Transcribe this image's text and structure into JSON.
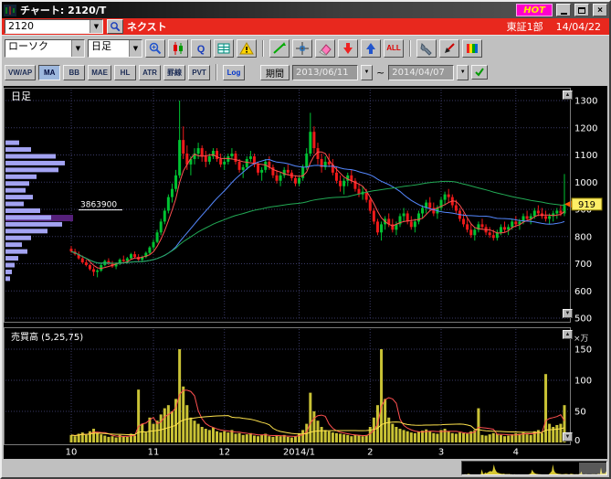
{
  "colors": {
    "symbol_bar": "#e8281e",
    "hot_badge": "#ff00cc",
    "window_bg": "#c0c0c0",
    "chart_bg": "#000000"
  },
  "window": {
    "title": "チャート: 2120/T",
    "hot_label": "HOT"
  },
  "symbol_bar": {
    "code": "2120",
    "name": "ネクスト",
    "market": "東証1部",
    "date": "14/04/22"
  },
  "toolbar": {
    "chart_type": "ローソク",
    "timeframe": "日足",
    "all_label": "ALL",
    "log_label": "Log",
    "icons": [
      "zoom-in",
      "candle-style",
      "quote",
      "grid",
      "alert",
      "draw-line",
      "crosshair",
      "eraser",
      "arrow-down",
      "arrow-up",
      "all",
      "settings",
      "pen",
      "palette"
    ]
  },
  "indicators": {
    "buttons": [
      "VW/AP",
      "MA",
      "BB",
      "MAE",
      "HL",
      "ATR",
      "罫線",
      "PVT"
    ],
    "active_button": "MA",
    "period_label": "期間",
    "date_from": "2013/06/11",
    "date_to": "2014/04/07",
    "tilde": "~"
  },
  "chart": {
    "panel_title": "日足",
    "left_label": "3863900",
    "last_price": "919",
    "volume_title": "売買高 (5,25,75)",
    "volume_unit": "×万",
    "price_ticks": [
      1300,
      1200,
      1100,
      1000,
      900,
      800,
      700,
      600,
      500
    ],
    "volume_ticks": [
      150,
      100,
      50,
      0
    ]
  },
  "chart_data": {
    "type": "candlestick",
    "price_axis": {
      "min": 500,
      "max": 1300,
      "step": 100
    },
    "volume_axis": {
      "min": 0,
      "max": 150,
      "step": 50,
      "unit": "×万"
    },
    "ma_periods": [
      5,
      25,
      75
    ],
    "volume_ma_periods": [
      5,
      25
    ],
    "colors": {
      "up": "#00c332",
      "down": "#ef1a1a",
      "ma5": "#ff5050",
      "ma25": "#5588ff",
      "ma75": "#22aa55",
      "vol_bar": "#c9c235",
      "vol_ma5": "#ff5050",
      "vol_ma25": "#ffe34d",
      "profile": "#a3a3f2",
      "profile_highlight": "#55207a",
      "grid": "#3a3a66",
      "badge_bg": "#ffef66",
      "badge_arrow": "#ff5500"
    },
    "x_labels": [
      {
        "label": "10",
        "i": 0
      },
      {
        "label": "11",
        "i": 22
      },
      {
        "label": "12",
        "i": 41
      },
      {
        "label": "2014/1",
        "i": 61
      },
      {
        "label": "2",
        "i": 80
      },
      {
        "label": "3",
        "i": 99
      },
      {
        "label": "4",
        "i": 119
      }
    ],
    "volume_profile": {
      "highlight_price": 868,
      "highlight_width": 74,
      "bars": [
        [
          1145,
          15
        ],
        [
          1120,
          28
        ],
        [
          1095,
          55
        ],
        [
          1070,
          65
        ],
        [
          1045,
          58
        ],
        [
          1020,
          34
        ],
        [
          995,
          26
        ],
        [
          970,
          22
        ],
        [
          945,
          30
        ],
        [
          920,
          20
        ],
        [
          895,
          38
        ],
        [
          870,
          50
        ],
        [
          845,
          62
        ],
        [
          820,
          46
        ],
        [
          795,
          28
        ],
        [
          770,
          18
        ],
        [
          745,
          24
        ],
        [
          720,
          14
        ],
        [
          695,
          10
        ],
        [
          670,
          7
        ],
        [
          645,
          5
        ]
      ]
    },
    "candles": [
      [
        755,
        765,
        740,
        745,
        12
      ],
      [
        745,
        755,
        730,
        735,
        10
      ],
      [
        735,
        745,
        715,
        720,
        14
      ],
      [
        720,
        730,
        700,
        705,
        16
      ],
      [
        705,
        715,
        690,
        695,
        12
      ],
      [
        695,
        700,
        675,
        680,
        18
      ],
      [
        680,
        690,
        655,
        670,
        22
      ],
      [
        670,
        680,
        650,
        675,
        15
      ],
      [
        675,
        700,
        670,
        695,
        13
      ],
      [
        695,
        715,
        690,
        710,
        11
      ],
      [
        710,
        720,
        695,
        700,
        9
      ],
      [
        700,
        710,
        685,
        690,
        10
      ],
      [
        690,
        705,
        680,
        700,
        8
      ],
      [
        700,
        720,
        695,
        715,
        12
      ],
      [
        715,
        730,
        705,
        710,
        10
      ],
      [
        710,
        725,
        700,
        720,
        9
      ],
      [
        720,
        740,
        715,
        735,
        14
      ],
      [
        735,
        745,
        720,
        725,
        11
      ],
      [
        725,
        735,
        710,
        715,
        85
      ],
      [
        715,
        730,
        705,
        725,
        30
      ],
      [
        725,
        745,
        720,
        740,
        16
      ],
      [
        740,
        765,
        735,
        760,
        40
      ],
      [
        760,
        790,
        750,
        780,
        30
      ],
      [
        780,
        825,
        775,
        815,
        35
      ],
      [
        815,
        865,
        805,
        855,
        45
      ],
      [
        855,
        905,
        845,
        895,
        55
      ],
      [
        895,
        955,
        885,
        945,
        60
      ],
      [
        945,
        995,
        925,
        975,
        50
      ],
      [
        975,
        1045,
        965,
        1025,
        70
      ],
      [
        1025,
        1300,
        1015,
        1155,
        150
      ],
      [
        1155,
        1205,
        1085,
        1105,
        90
      ],
      [
        1105,
        1135,
        1045,
        1065,
        60
      ],
      [
        1065,
        1095,
        1025,
        1085,
        40
      ],
      [
        1085,
        1125,
        1065,
        1105,
        35
      ],
      [
        1105,
        1145,
        1085,
        1125,
        30
      ],
      [
        1125,
        1135,
        1075,
        1095,
        25
      ],
      [
        1095,
        1115,
        1055,
        1075,
        22
      ],
      [
        1075,
        1105,
        1065,
        1095,
        20
      ],
      [
        1095,
        1125,
        1085,
        1115,
        24
      ],
      [
        1115,
        1125,
        1075,
        1085,
        18
      ],
      [
        1085,
        1105,
        1055,
        1065,
        16
      ],
      [
        1065,
        1095,
        1045,
        1075,
        18
      ],
      [
        1075,
        1105,
        1065,
        1095,
        16
      ],
      [
        1095,
        1125,
        1085,
        1105,
        20
      ],
      [
        1105,
        1115,
        1065,
        1075,
        14
      ],
      [
        1075,
        1085,
        1035,
        1045,
        15
      ],
      [
        1045,
        1065,
        1015,
        1055,
        12
      ],
      [
        1055,
        1095,
        1045,
        1085,
        13
      ],
      [
        1085,
        1115,
        1075,
        1095,
        15
      ],
      [
        1095,
        1105,
        1055,
        1065,
        11
      ],
      [
        1065,
        1075,
        1025,
        1035,
        10
      ],
      [
        1035,
        1055,
        1005,
        1045,
        12
      ],
      [
        1045,
        1085,
        1035,
        1075,
        14
      ],
      [
        1075,
        1095,
        1045,
        1055,
        10
      ],
      [
        1055,
        1065,
        1015,
        1025,
        9
      ],
      [
        1025,
        1045,
        995,
        1005,
        11
      ],
      [
        1005,
        1035,
        985,
        1025,
        10
      ],
      [
        1025,
        1055,
        1015,
        1045,
        12
      ],
      [
        1045,
        1065,
        1025,
        1035,
        9
      ],
      [
        1035,
        1045,
        1005,
        1015,
        8
      ],
      [
        1015,
        1025,
        985,
        995,
        10
      ],
      [
        995,
        1025,
        985,
        1015,
        15
      ],
      [
        1015,
        1065,
        1005,
        1055,
        20
      ],
      [
        1055,
        1125,
        1045,
        1105,
        30
      ],
      [
        1105,
        1255,
        1095,
        1185,
        80
      ],
      [
        1185,
        1205,
        1105,
        1125,
        50
      ],
      [
        1125,
        1145,
        1065,
        1085,
        35
      ],
      [
        1085,
        1105,
        1035,
        1055,
        25
      ],
      [
        1055,
        1095,
        1045,
        1075,
        20
      ],
      [
        1075,
        1105,
        1055,
        1065,
        18
      ],
      [
        1065,
        1085,
        1025,
        1035,
        16
      ],
      [
        1035,
        1055,
        995,
        1005,
        15
      ],
      [
        1005,
        1025,
        965,
        985,
        14
      ],
      [
        985,
        1015,
        955,
        1005,
        13
      ],
      [
        1005,
        1035,
        985,
        1025,
        12
      ],
      [
        1025,
        1045,
        995,
        1005,
        10
      ],
      [
        1005,
        1015,
        965,
        975,
        12
      ],
      [
        975,
        995,
        945,
        955,
        11
      ],
      [
        955,
        985,
        935,
        965,
        10
      ],
      [
        965,
        975,
        925,
        935,
        12
      ],
      [
        935,
        945,
        885,
        895,
        25
      ],
      [
        895,
        905,
        845,
        855,
        40
      ],
      [
        855,
        865,
        805,
        815,
        60
      ],
      [
        815,
        855,
        785,
        845,
        150
      ],
      [
        845,
        875,
        825,
        865,
        70
      ],
      [
        865,
        885,
        835,
        845,
        40
      ],
      [
        845,
        865,
        815,
        825,
        30
      ],
      [
        825,
        855,
        805,
        845,
        25
      ],
      [
        845,
        885,
        835,
        875,
        22
      ],
      [
        875,
        905,
        855,
        885,
        20
      ],
      [
        885,
        895,
        845,
        855,
        18
      ],
      [
        855,
        875,
        825,
        835,
        16
      ],
      [
        835,
        865,
        815,
        855,
        15
      ],
      [
        855,
        895,
        845,
        885,
        17
      ],
      [
        885,
        915,
        865,
        905,
        19
      ],
      [
        905,
        935,
        885,
        925,
        21
      ],
      [
        925,
        945,
        895,
        905,
        18
      ],
      [
        905,
        925,
        875,
        885,
        15
      ],
      [
        885,
        915,
        865,
        905,
        14
      ],
      [
        905,
        945,
        895,
        935,
        20
      ],
      [
        935,
        965,
        915,
        955,
        22
      ],
      [
        955,
        975,
        925,
        945,
        18
      ],
      [
        945,
        955,
        905,
        915,
        15
      ],
      [
        915,
        935,
        885,
        895,
        14
      ],
      [
        895,
        905,
        855,
        865,
        16
      ],
      [
        865,
        885,
        835,
        845,
        15
      ],
      [
        845,
        865,
        815,
        825,
        14
      ],
      [
        825,
        845,
        795,
        805,
        18
      ],
      [
        805,
        835,
        785,
        825,
        20
      ],
      [
        825,
        855,
        815,
        845,
        55
      ],
      [
        845,
        865,
        825,
        835,
        12
      ],
      [
        835,
        845,
        805,
        815,
        11
      ],
      [
        815,
        835,
        795,
        805,
        13
      ],
      [
        805,
        825,
        785,
        795,
        15
      ],
      [
        795,
        825,
        785,
        815,
        14
      ],
      [
        815,
        845,
        805,
        835,
        12
      ],
      [
        835,
        855,
        815,
        825,
        10
      ],
      [
        825,
        845,
        805,
        835,
        11
      ],
      [
        835,
        865,
        825,
        855,
        13
      ],
      [
        855,
        875,
        835,
        845,
        15
      ],
      [
        845,
        865,
        825,
        855,
        14
      ],
      [
        855,
        885,
        845,
        875,
        16
      ],
      [
        875,
        895,
        855,
        865,
        13
      ],
      [
        865,
        885,
        845,
        875,
        12
      ],
      [
        875,
        905,
        865,
        895,
        18
      ],
      [
        895,
        915,
        875,
        885,
        20
      ],
      [
        885,
        905,
        865,
        875,
        15
      ],
      [
        875,
        895,
        855,
        865,
        110
      ],
      [
        865,
        885,
        845,
        875,
        30
      ],
      [
        875,
        895,
        855,
        885,
        25
      ],
      [
        885,
        905,
        865,
        895,
        28
      ],
      [
        895,
        915,
        875,
        885,
        30
      ],
      [
        885,
        1030,
        875,
        919,
        60
      ]
    ]
  }
}
